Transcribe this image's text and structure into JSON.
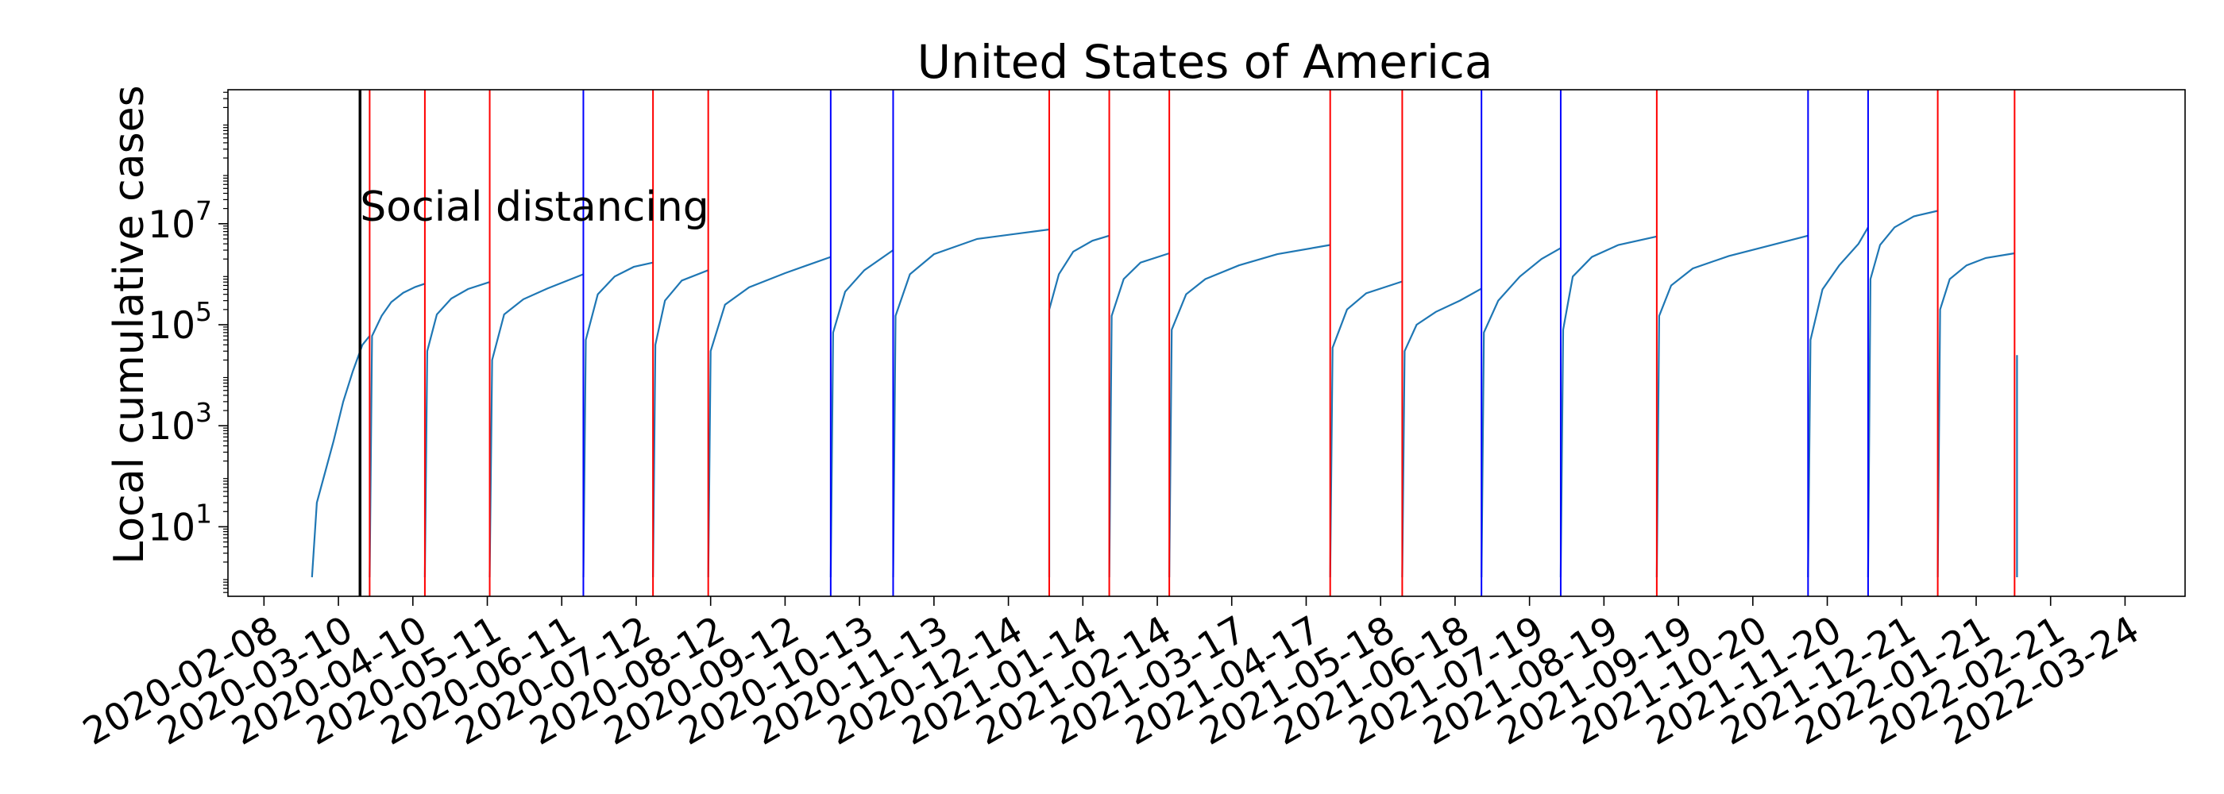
{
  "chart_data": {
    "type": "line",
    "title": "United States of America",
    "xlabel": "",
    "ylabel": "Local cumulative cases",
    "yscale": "log",
    "ylim": [
      0.42,
      4500000000
    ],
    "xlim": [
      "2020-01-24",
      "2022-04-18"
    ],
    "x_ticks": [
      "2020-02-08",
      "2020-03-10",
      "2020-04-10",
      "2020-05-11",
      "2020-06-11",
      "2020-07-12",
      "2020-08-12",
      "2020-09-12",
      "2020-10-13",
      "2020-11-13",
      "2020-12-14",
      "2021-01-14",
      "2021-02-14",
      "2021-03-17",
      "2021-04-17",
      "2021-05-18",
      "2021-06-18",
      "2021-07-19",
      "2021-08-19",
      "2021-09-19",
      "2021-10-20",
      "2021-11-20",
      "2021-12-21",
      "2022-01-21",
      "2022-02-21",
      "2022-03-24"
    ],
    "y_ticks": [
      {
        "value": 10,
        "base": "10",
        "exp": "1"
      },
      {
        "value": 1000,
        "base": "10",
        "exp": "3"
      },
      {
        "value": 100000,
        "base": "10",
        "exp": "5"
      },
      {
        "value": 10000000,
        "base": "10",
        "exp": "7"
      }
    ],
    "annotation": {
      "date": "2020-03-19",
      "text": "Social distancing",
      "color": "#000000"
    },
    "line_color": "#1f77b4",
    "vertical_lines": [
      {
        "date": "2020-03-23",
        "color": "#ff0000"
      },
      {
        "date": "2020-04-15",
        "color": "#ff0000"
      },
      {
        "date": "2020-05-12",
        "color": "#ff0000"
      },
      {
        "date": "2020-06-20",
        "color": "#0000ff"
      },
      {
        "date": "2020-07-19",
        "color": "#ff0000"
      },
      {
        "date": "2020-08-11",
        "color": "#ff0000"
      },
      {
        "date": "2020-10-01",
        "color": "#0000ff"
      },
      {
        "date": "2020-10-27",
        "color": "#0000ff"
      },
      {
        "date": "2020-12-31",
        "color": "#ff0000"
      },
      {
        "date": "2021-01-25",
        "color": "#ff0000"
      },
      {
        "date": "2021-02-19",
        "color": "#ff0000"
      },
      {
        "date": "2021-04-27",
        "color": "#ff0000"
      },
      {
        "date": "2021-05-27",
        "color": "#ff0000"
      },
      {
        "date": "2021-06-29",
        "color": "#0000ff"
      },
      {
        "date": "2021-08-01",
        "color": "#0000ff"
      },
      {
        "date": "2021-09-10",
        "color": "#ff0000"
      },
      {
        "date": "2021-11-12",
        "color": "#0000ff"
      },
      {
        "date": "2021-12-07",
        "color": "#0000ff"
      },
      {
        "date": "2022-01-05",
        "color": "#ff0000"
      },
      {
        "date": "2022-02-06",
        "color": "#ff0000"
      }
    ],
    "series": [
      {
        "points": [
          [
            "2020-02-28",
            1
          ],
          [
            "2020-03-01",
            30
          ],
          [
            "2020-03-05",
            150
          ],
          [
            "2020-03-08",
            500
          ],
          [
            "2020-03-12",
            3000
          ],
          [
            "2020-03-16",
            12000
          ],
          [
            "2020-03-20",
            40000
          ],
          [
            "2020-03-23",
            60000
          ]
        ]
      },
      {
        "points": [
          [
            "2020-03-23",
            1
          ],
          [
            "2020-03-24",
            60000
          ],
          [
            "2020-03-28",
            150000
          ],
          [
            "2020-04-01",
            280000
          ],
          [
            "2020-04-06",
            430000
          ],
          [
            "2020-04-11",
            560000
          ],
          [
            "2020-04-15",
            650000
          ]
        ]
      },
      {
        "points": [
          [
            "2020-04-15",
            1
          ],
          [
            "2020-04-16",
            30000
          ],
          [
            "2020-04-20",
            160000
          ],
          [
            "2020-04-26",
            330000
          ],
          [
            "2020-05-03",
            510000
          ],
          [
            "2020-05-12",
            700000
          ]
        ]
      },
      {
        "points": [
          [
            "2020-05-12",
            1
          ],
          [
            "2020-05-13",
            20000
          ],
          [
            "2020-05-18",
            160000
          ],
          [
            "2020-05-26",
            320000
          ],
          [
            "2020-06-05",
            520000
          ],
          [
            "2020-06-20",
            1000000
          ]
        ]
      },
      {
        "points": [
          [
            "2020-06-20",
            1
          ],
          [
            "2020-06-21",
            50000
          ],
          [
            "2020-06-26",
            400000
          ],
          [
            "2020-07-03",
            900000
          ],
          [
            "2020-07-11",
            1400000
          ],
          [
            "2020-07-19",
            1700000
          ]
        ]
      },
      {
        "points": [
          [
            "2020-07-19",
            1
          ],
          [
            "2020-07-20",
            40000
          ],
          [
            "2020-07-24",
            300000
          ],
          [
            "2020-07-31",
            750000
          ],
          [
            "2020-08-11",
            1200000
          ]
        ]
      },
      {
        "points": [
          [
            "2020-08-11",
            1
          ],
          [
            "2020-08-12",
            30000
          ],
          [
            "2020-08-18",
            250000
          ],
          [
            "2020-08-28",
            550000
          ],
          [
            "2020-09-12",
            1050000
          ],
          [
            "2020-10-01",
            2200000
          ]
        ]
      },
      {
        "points": [
          [
            "2020-10-01",
            1
          ],
          [
            "2020-10-02",
            70000
          ],
          [
            "2020-10-07",
            450000
          ],
          [
            "2020-10-15",
            1200000
          ],
          [
            "2020-10-27",
            3000000
          ]
        ]
      },
      {
        "points": [
          [
            "2020-10-27",
            1
          ],
          [
            "2020-10-28",
            150000
          ],
          [
            "2020-11-03",
            1000000
          ],
          [
            "2020-11-13",
            2500000
          ],
          [
            "2020-12-01",
            5000000
          ],
          [
            "2020-12-31",
            7700000
          ]
        ]
      },
      {
        "points": [
          [
            "2020-12-31",
            1
          ],
          [
            "2020-12-31",
            200000
          ],
          [
            "2021-01-04",
            1000000
          ],
          [
            "2021-01-10",
            2800000
          ],
          [
            "2021-01-18",
            4600000
          ],
          [
            "2021-01-25",
            5800000
          ]
        ]
      },
      {
        "points": [
          [
            "2021-01-25",
            1
          ],
          [
            "2021-01-26",
            150000
          ],
          [
            "2021-01-31",
            800000
          ],
          [
            "2021-02-07",
            1700000
          ],
          [
            "2021-02-19",
            2600000
          ]
        ]
      },
      {
        "points": [
          [
            "2021-02-19",
            1
          ],
          [
            "2021-02-20",
            80000
          ],
          [
            "2021-02-26",
            400000
          ],
          [
            "2021-03-06",
            800000
          ],
          [
            "2021-03-20",
            1500000
          ],
          [
            "2021-04-05",
            2500000
          ],
          [
            "2021-04-27",
            3800000
          ]
        ]
      },
      {
        "points": [
          [
            "2021-04-27",
            1
          ],
          [
            "2021-04-28",
            35000
          ],
          [
            "2021-05-04",
            200000
          ],
          [
            "2021-05-12",
            420000
          ],
          [
            "2021-05-27",
            720000
          ]
        ]
      },
      {
        "points": [
          [
            "2021-05-27",
            1
          ],
          [
            "2021-05-28",
            30000
          ],
          [
            "2021-06-02",
            100000
          ],
          [
            "2021-06-10",
            180000
          ],
          [
            "2021-06-20",
            300000
          ],
          [
            "2021-06-29",
            520000
          ]
        ]
      },
      {
        "points": [
          [
            "2021-06-29",
            1
          ],
          [
            "2021-06-30",
            70000
          ],
          [
            "2021-07-06",
            300000
          ],
          [
            "2021-07-15",
            900000
          ],
          [
            "2021-07-24",
            2000000
          ],
          [
            "2021-08-01",
            3300000
          ]
        ]
      },
      {
        "points": [
          [
            "2021-08-01",
            1
          ],
          [
            "2021-08-02",
            80000
          ],
          [
            "2021-08-06",
            900000
          ],
          [
            "2021-08-14",
            2200000
          ],
          [
            "2021-08-25",
            3800000
          ],
          [
            "2021-09-10",
            5600000
          ]
        ]
      },
      {
        "points": [
          [
            "2021-09-10",
            1
          ],
          [
            "2021-09-11",
            150000
          ],
          [
            "2021-09-16",
            600000
          ],
          [
            "2021-09-25",
            1300000
          ],
          [
            "2021-10-10",
            2300000
          ],
          [
            "2021-10-25",
            3500000
          ],
          [
            "2021-11-12",
            5800000
          ]
        ]
      },
      {
        "points": [
          [
            "2021-11-12",
            1
          ],
          [
            "2021-11-13",
            50000
          ],
          [
            "2021-11-18",
            500000
          ],
          [
            "2021-11-25",
            1500000
          ],
          [
            "2021-12-03",
            4000000
          ],
          [
            "2021-12-07",
            8500000
          ]
        ]
      },
      {
        "points": [
          [
            "2021-12-07",
            1
          ],
          [
            "2021-12-08",
            800000
          ],
          [
            "2021-12-12",
            3800000
          ],
          [
            "2021-12-18",
            8500000
          ],
          [
            "2021-12-26",
            14000000
          ],
          [
            "2022-01-05",
            18000000
          ]
        ]
      },
      {
        "points": [
          [
            "2022-01-05",
            1
          ],
          [
            "2022-01-06",
            200000
          ],
          [
            "2022-01-10",
            800000
          ],
          [
            "2022-01-17",
            1500000
          ],
          [
            "2022-01-25",
            2100000
          ],
          [
            "2022-02-06",
            2600000
          ]
        ]
      },
      {
        "points": [
          [
            "2022-02-07",
            1
          ],
          [
            "2022-02-07",
            25000
          ]
        ]
      }
    ]
  }
}
